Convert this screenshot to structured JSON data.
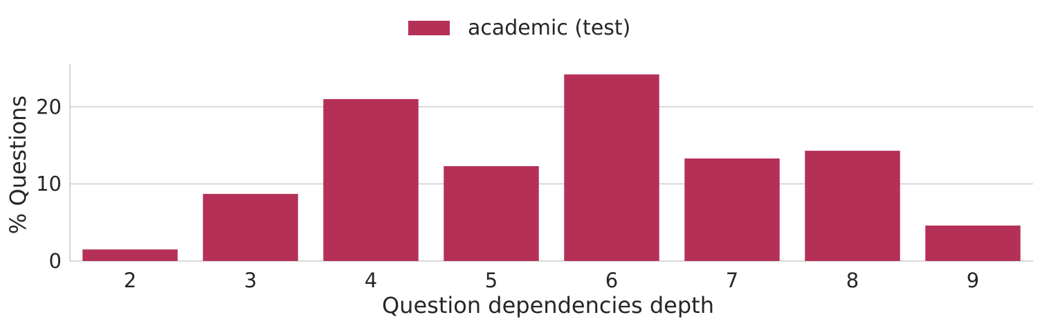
{
  "colors": {
    "bar": "#b53057",
    "grid": "#cccccc",
    "axis": "#cccccc",
    "text": "#262626"
  },
  "chart_data": {
    "type": "bar",
    "categories": [
      "2",
      "3",
      "4",
      "5",
      "6",
      "7",
      "8",
      "9"
    ],
    "series": [
      {
        "name": "academic (test)",
        "values": [
          1.5,
          8.7,
          21.0,
          12.3,
          24.2,
          13.3,
          14.3,
          4.6
        ]
      }
    ],
    "xlabel": "Question dependencies depth",
    "ylabel": "% Questions",
    "ylim": [
      0,
      25.5
    ],
    "yticks": [
      0,
      10,
      20
    ],
    "grid": "horizontal",
    "legend": "top-center"
  }
}
